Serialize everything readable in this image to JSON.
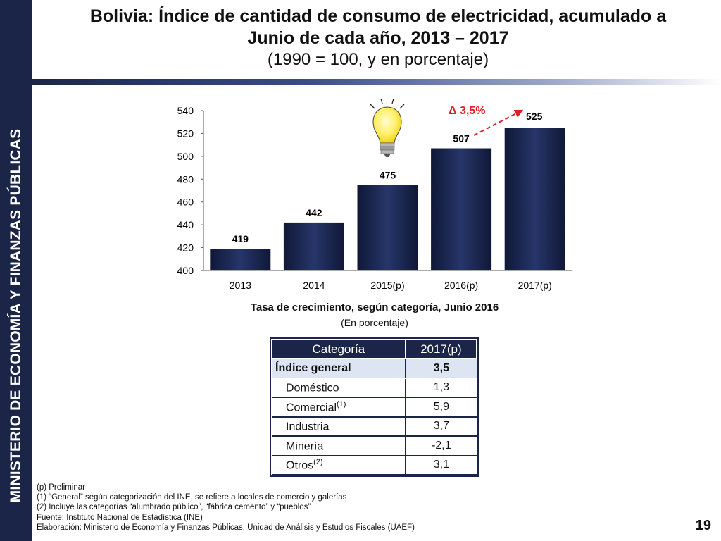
{
  "sidebar": {
    "label": "MINISTERIO DE ECONOMÍA Y FINANZAS PÚBLICAS"
  },
  "header": {
    "title_line1": "Bolivia: Índice de cantidad de consumo de electricidad, acumulado a",
    "title_line2": "Junio de cada año, 2013 – 2017",
    "subtitle": "(1990 = 100, y en porcentaje)"
  },
  "chart_data": {
    "type": "bar",
    "categories": [
      "2013",
      "2014",
      "2015(p)",
      "2016(p)",
      "2017(p)"
    ],
    "values": [
      419,
      442,
      475,
      507,
      525
    ],
    "value_labels": [
      "419",
      "442",
      "475",
      "507",
      "525"
    ],
    "yticks": [
      "400",
      "420",
      "440",
      "460",
      "480",
      "500",
      "520",
      "540"
    ],
    "ylim": [
      400,
      540
    ],
    "annotation": "3,5%",
    "annotation_symbol": "Δ",
    "bar_color": "#1a2547",
    "annotation_color": "#e41e26"
  },
  "table": {
    "title": "Tasa de crecimiento, según categoría, Junio 2016",
    "subtitle": "(En porcentaje)",
    "headers": [
      "Categoría",
      "2017(p)"
    ],
    "general": {
      "label": "Índice general",
      "value": "3,5"
    },
    "rows": [
      {
        "label": "Doméstico",
        "note": "",
        "value": "1,3"
      },
      {
        "label": "Comercial",
        "note": "(1)",
        "value": "5,9"
      },
      {
        "label": "Industria",
        "note": "",
        "value": "3,7"
      },
      {
        "label": "Minería",
        "note": "",
        "value": "-2,1"
      },
      {
        "label": "Otros",
        "note": "(2)",
        "value": "3,1"
      }
    ]
  },
  "footnotes": [
    "(p) Preliminar",
    "(1) “General” según categorización del INE, se refiere a locales de comercio y galerías",
    "(2) Incluye las categorías “alumbrado público”, “fábrica cemento” y “pueblos”",
    "Fuente: Instituto Nacional de Estadística (INE)",
    "Elaboración: Ministerio de Economía y Finanzas Públicas, Unidad de Análisis y Estudios Fiscales (UAEF)"
  ],
  "page_number": "19",
  "colors": {
    "navy": "#1a2547",
    "accent_red": "#e41e26",
    "highlight": "#dde4f2"
  }
}
